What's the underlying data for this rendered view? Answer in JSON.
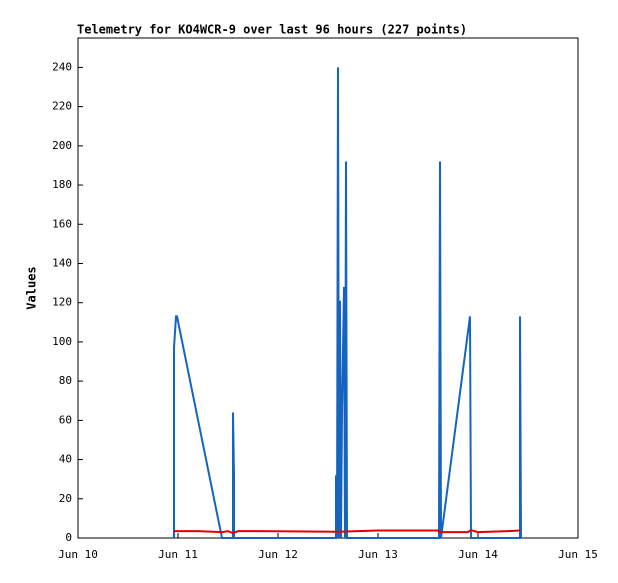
{
  "chart_data": {
    "type": "line",
    "title": "Telemetry for KO4WCR-9 over last 96 hours (227 points)",
    "y_label": "Values",
    "xlim": [
      0,
      5
    ],
    "xticks": [
      {
        "value": 0,
        "label": "Jun 10"
      },
      {
        "value": 1,
        "label": "Jun 11"
      },
      {
        "value": 2,
        "label": "Jun 12"
      },
      {
        "value": 3,
        "label": "Jun 13"
      },
      {
        "value": 4,
        "label": "Jun 14"
      },
      {
        "value": 5,
        "label": "Jun 15"
      }
    ],
    "ylim": [
      0,
      255
    ],
    "yticks": [
      0,
      20,
      40,
      60,
      80,
      100,
      120,
      140,
      160,
      180,
      200,
      220,
      240
    ],
    "series": [
      {
        "color": "#1565c0",
        "x": [
          0.96,
          0.96,
          0.98,
          0.99,
          1.44,
          1.55,
          1.55,
          1.56,
          1.56,
          2.58,
          2.58,
          2.59,
          2.6,
          2.61,
          2.62,
          2.63,
          2.64,
          2.66,
          2.67,
          2.68,
          2.69,
          3.61,
          3.62,
          3.63,
          3.92,
          3.93,
          4.42,
          4.42,
          4.43
        ],
        "values": [
          0,
          97,
          113,
          113,
          0,
          0,
          64,
          32,
          0,
          0,
          32,
          0,
          240,
          0,
          121,
          0,
          64,
          128,
          0,
          192,
          0,
          0,
          192,
          0,
          113,
          0,
          0,
          113,
          0
        ]
      },
      {
        "color": "#e00000",
        "x": [
          0.96,
          1.2,
          1.44,
          1.5,
          1.55,
          1.6,
          1.8,
          2.6,
          3.0,
          3.6,
          3.62,
          3.9,
          3.93,
          4.0,
          4.3,
          4.42
        ],
        "values": [
          3.5,
          3.5,
          3,
          3.5,
          2.5,
          3.5,
          3.5,
          3.2,
          3.8,
          3.8,
          3,
          3,
          4,
          3,
          3.5,
          3.8
        ]
      }
    ]
  }
}
